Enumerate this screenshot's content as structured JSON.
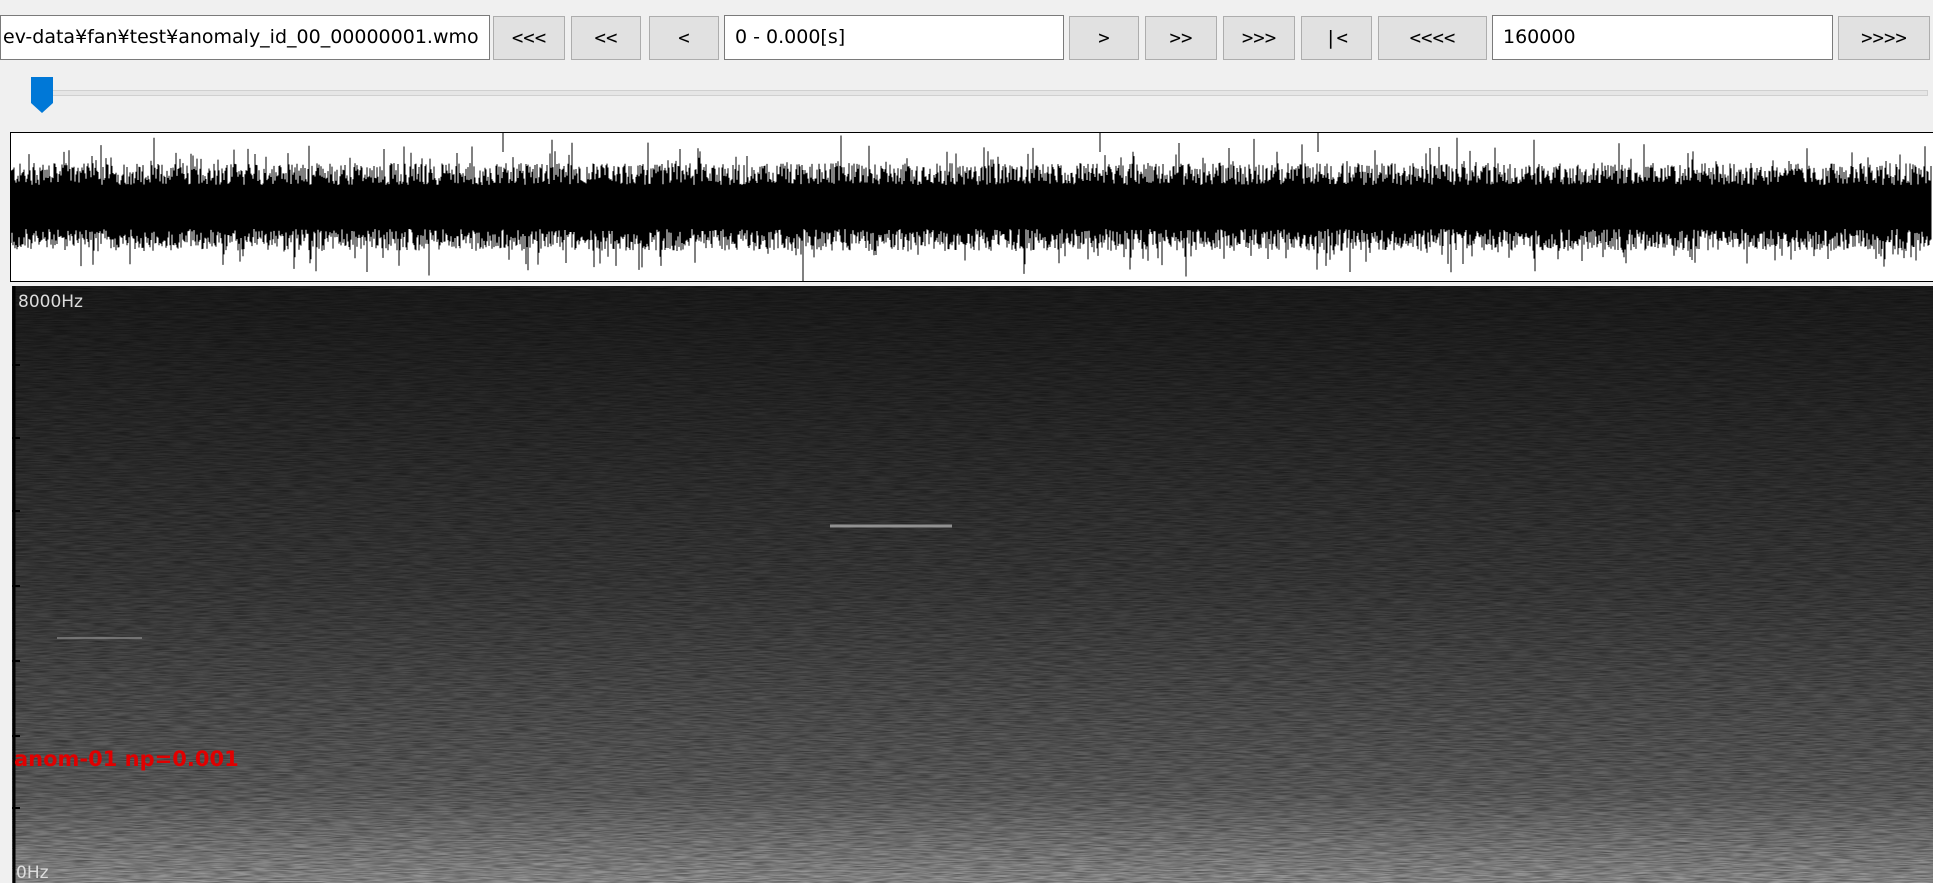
{
  "toolbar": {
    "file_path": "ev-data¥fan¥test¥anomaly_id_00_00000001.wmo",
    "buttons": [
      "<<<",
      "<<",
      "<",
      ">",
      ">>",
      ">>>",
      "|<",
      "<<<<",
      ">>>>"
    ],
    "time_range": "0 - 0.000[s]",
    "sample_count": "160000"
  },
  "spectrogram": {
    "top_label": "8000Hz",
    "bottom_label": "0Hz",
    "annotation": "anom-01 np=0.001"
  }
}
